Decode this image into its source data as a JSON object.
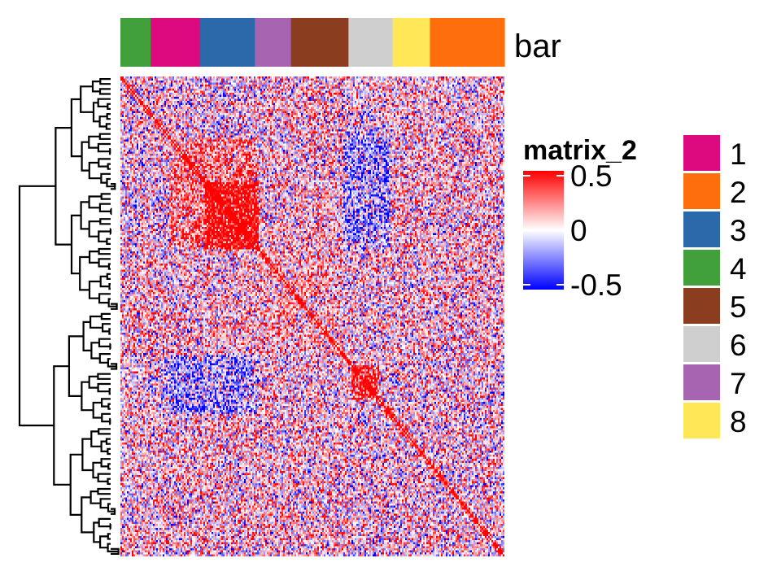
{
  "chart_data": {
    "type": "heatmap",
    "title": "",
    "xlabel": "",
    "ylabel": "",
    "annotation_bar": {
      "name": "bar",
      "segments": [
        {
          "group": "4",
          "start": 0.0,
          "end": 0.079
        },
        {
          "group": "1",
          "start": 0.079,
          "end": 0.207
        },
        {
          "group": "3",
          "start": 0.207,
          "end": 0.35
        },
        {
          "group": "7",
          "start": 0.35,
          "end": 0.444
        },
        {
          "group": "5",
          "start": 0.444,
          "end": 0.594
        },
        {
          "group": "6",
          "start": 0.594,
          "end": 0.709
        },
        {
          "group": "8",
          "start": 0.709,
          "end": 0.806
        },
        {
          "group": "2",
          "start": 0.806,
          "end": 1.0
        }
      ]
    },
    "color_scale": {
      "name": "matrix_2",
      "min": -0.5,
      "mid": 0,
      "max": 0.5,
      "colors": [
        "#0000ff",
        "#ffffff",
        "#ff0000"
      ],
      "ticks": [
        {
          "value": 0.5,
          "label": "0.5"
        },
        {
          "value": 0,
          "label": "0"
        },
        {
          "value": -0.5,
          "label": "-0.5"
        }
      ]
    },
    "legend": {
      "placement": "right",
      "items": [
        {
          "label": "1",
          "color": "#dc0a7e"
        },
        {
          "label": "2",
          "color": "#ff6e0d"
        },
        {
          "label": "3",
          "color": "#2c69ab"
        },
        {
          "label": "4",
          "color": "#42a03c"
        },
        {
          "label": "5",
          "color": "#8b3e1f"
        },
        {
          "label": "6",
          "color": "#cfcfcf"
        },
        {
          "label": "7",
          "color": "#a664b1"
        },
        {
          "label": "8",
          "color": "#ffe757"
        }
      ]
    },
    "blocks": [
      {
        "rows": [
          0.13,
          0.36
        ],
        "cols": [
          0.13,
          0.36
        ],
        "value": 0.22
      },
      {
        "rows": [
          0.22,
          0.36
        ],
        "cols": [
          0.22,
          0.36
        ],
        "value": 0.32
      },
      {
        "rows": [
          0.6,
          0.67
        ],
        "cols": [
          0.6,
          0.67
        ],
        "value": 0.4
      },
      {
        "rows": [
          0.13,
          0.36
        ],
        "cols": [
          0.58,
          0.7
        ],
        "value": -0.22
      },
      {
        "rows": [
          0.58,
          0.7
        ],
        "cols": [
          0.1,
          0.34
        ],
        "value": -0.22
      },
      {
        "rows": [
          0.36,
          0.58
        ],
        "cols": [
          0.0,
          0.56
        ],
        "value": 0.08
      },
      {
        "rows": [
          0.7,
          1.0
        ],
        "cols": [
          0.0,
          0.6
        ],
        "value": 0.06
      }
    ],
    "noise_sd": 0.28,
    "grid": false,
    "dendrogram": "rows"
  }
}
